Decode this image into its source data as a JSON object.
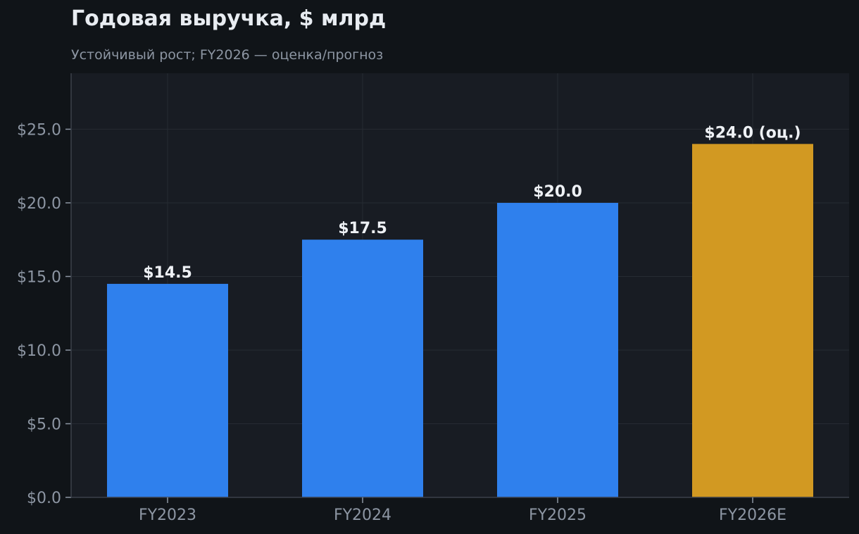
{
  "chart_data": {
    "type": "bar",
    "title": "Годовая выручка, $ млрд",
    "subtitle": "Устойчивый рост; FY2026 — оценка/прогноз",
    "xlabel": "",
    "ylabel": "",
    "categories": [
      "FY2023",
      "FY2024",
      "FY2025",
      "FY2026E"
    ],
    "values": [
      14.5,
      17.5,
      20.0,
      24.0
    ],
    "value_labels": [
      "$14.5",
      "$17.5",
      "$20.0",
      "$24.0 (оц.)"
    ],
    "ylim": [
      0,
      28.8
    ],
    "yticks": [
      0,
      5,
      10,
      15,
      20,
      25
    ],
    "ytick_labels": [
      "$0.0",
      "$5.0",
      "$10.0",
      "$15.0",
      "$20.0",
      "$25.0"
    ],
    "grid": true,
    "legend": "none",
    "colors": {
      "actual": "#2f80ed",
      "estimate": "#d29922",
      "background": "#101418",
      "plot_background": "#181c23",
      "grid": "#262b33"
    },
    "bar_colors": [
      "#2f80ed",
      "#2f80ed",
      "#2f80ed",
      "#d29922"
    ]
  }
}
